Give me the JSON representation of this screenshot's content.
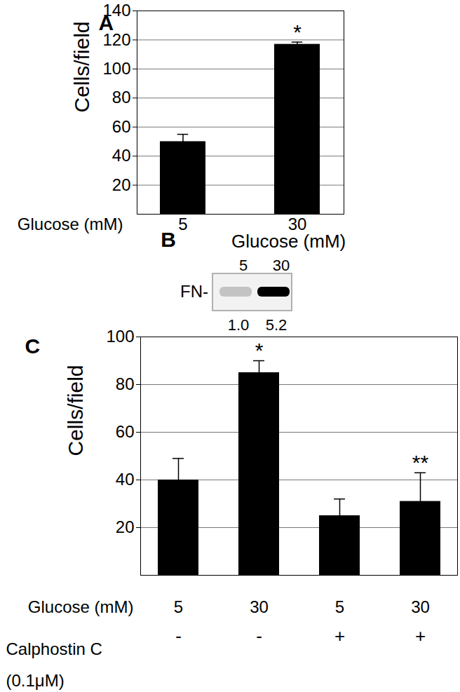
{
  "chart_data": [
    {
      "type": "bar",
      "title": "A",
      "ylabel": "Cells/field",
      "xlabel": "Glucose (mM)",
      "categories": [
        "5",
        "30"
      ],
      "values": [
        50,
        117
      ],
      "errors": [
        5,
        1.5
      ],
      "annotations": [
        null,
        "*"
      ],
      "color": "#000000",
      "ylim": [
        0,
        140
      ],
      "yticks": [
        20,
        40,
        60,
        80,
        100,
        120,
        140
      ],
      "grid": true
    },
    {
      "type": "blot",
      "title": "B",
      "xlabel": "Glucose (mM)",
      "categories": [
        "5",
        "30"
      ],
      "band_label": "FN-",
      "values": [
        1.0,
        5.2
      ],
      "value_labels": [
        "1.0",
        "5.2"
      ],
      "data_labels": true,
      "color": "#000000"
    },
    {
      "type": "bar",
      "title": "C",
      "ylabel": "Cells/field",
      "xlabel": "Glucose (mM)",
      "categories": [
        "5",
        "30",
        "5",
        "30"
      ],
      "rows": [
        {
          "label": "Calphostin C\n(0.1μM)",
          "values": [
            "-",
            "-",
            "+",
            "+"
          ]
        }
      ],
      "values": [
        40,
        85,
        25,
        31
      ],
      "errors": [
        9,
        5,
        7,
        12
      ],
      "annotations": [
        null,
        "*",
        null,
        "**"
      ],
      "color": "#000000",
      "ylim": [
        0,
        100
      ],
      "yticks": [
        20,
        40,
        60,
        80,
        100
      ],
      "grid": true
    }
  ]
}
